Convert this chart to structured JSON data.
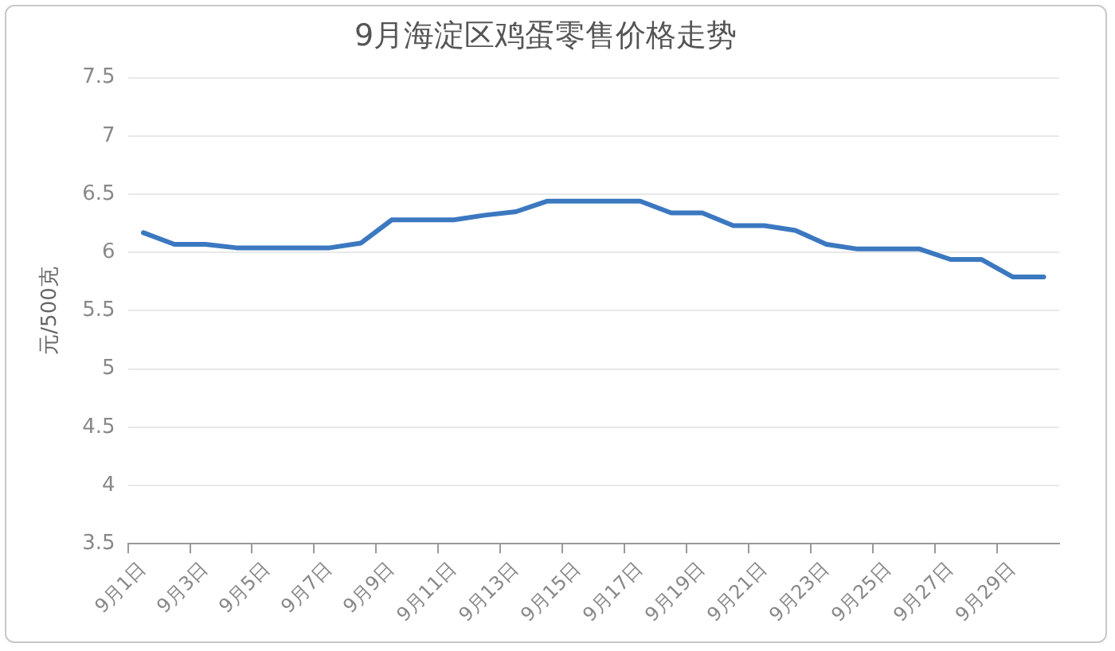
{
  "chart_data": {
    "type": "line",
    "title": "9月海淀区鸡蛋零售价格走势",
    "ylabel": "元/500克",
    "categories": [
      "9月1日",
      null,
      "9月3日",
      null,
      "9月5日",
      null,
      "9月7日",
      null,
      "9月9日",
      null,
      "9月11日",
      null,
      "9月13日",
      null,
      "9月15日",
      null,
      "9月17日",
      null,
      "9月19日",
      null,
      "9月21日",
      null,
      "9月23日",
      null,
      "9月25日",
      null,
      "9月27日",
      null,
      "9月29日",
      null
    ],
    "series": [
      {
        "color": "#3b78c0",
        "values": [
          6.17,
          6.07,
          6.07,
          6.04,
          6.04,
          6.04,
          6.04,
          6.08,
          6.28,
          6.28,
          6.28,
          6.32,
          6.35,
          6.44,
          6.44,
          6.44,
          6.44,
          6.34,
          6.34,
          6.23,
          6.23,
          6.19,
          6.07,
          6.03,
          6.03,
          6.03,
          5.94,
          5.94,
          5.79,
          5.79
        ]
      }
    ],
    "ylim": [
      3.5,
      7.5
    ],
    "yticks": [
      3.5,
      4,
      4.5,
      5,
      5.5,
      6,
      6.5,
      7,
      7.5
    ],
    "grid": "y",
    "legend": false,
    "marker": "none",
    "line_style": "solid"
  }
}
